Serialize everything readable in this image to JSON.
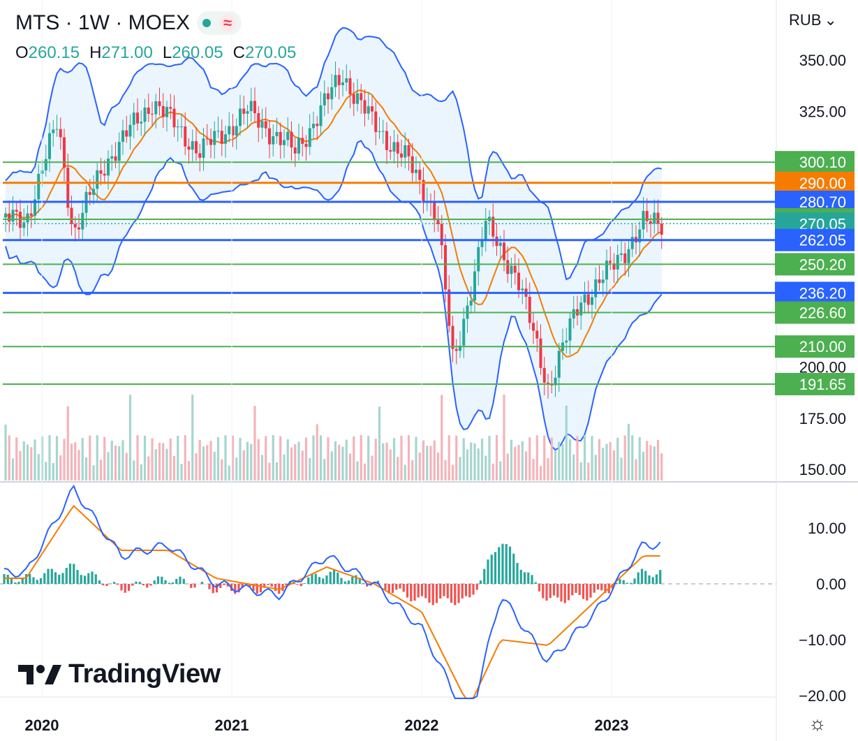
{
  "header": {
    "symbol": "MTS · 1W · MOEX",
    "indicator_wave": "≈",
    "ohlc": {
      "o_label": "O",
      "o_value": "260.15",
      "h_label": "H",
      "h_value": "271.00",
      "l_label": "L",
      "l_value": "260.05",
      "c_label": "C",
      "c_value": "270.05"
    },
    "currency": "RUB"
  },
  "brand": "TradingView",
  "colors": {
    "up": "#26a69a",
    "down": "#f23645",
    "blue": "#2962ff",
    "orange": "#f57c00",
    "green_level": "#4caf50",
    "band_fill": "#e3f2fd"
  },
  "chart_data": [
    {
      "type": "candlestick",
      "title": "MTS · 1W · MOEX",
      "y_axis_ticks": [
        "350.00",
        "325.00",
        "200.00",
        "175.00",
        "150.00"
      ],
      "x_axis_ticks": [
        "2020",
        "2021",
        "2022",
        "2023"
      ],
      "ylim": [
        150,
        355
      ],
      "horizontal_levels": [
        {
          "value": 300.1,
          "label": "300.10",
          "color": "green"
        },
        {
          "value": 290.0,
          "label": "290.00",
          "color": "orange"
        },
        {
          "value": 280.7,
          "label": "280.70",
          "color": "blue"
        },
        {
          "value": 272.2,
          "label": "272.20",
          "color": "green"
        },
        {
          "value": 270.05,
          "label": "270.05",
          "color": "green",
          "current_price": true
        },
        {
          "value": 262.05,
          "label": "262.05",
          "color": "blue"
        },
        {
          "value": 250.2,
          "label": "250.20",
          "color": "green"
        },
        {
          "value": 236.2,
          "label": "236.20",
          "color": "blue"
        },
        {
          "value": 226.6,
          "label": "226.60",
          "color": "green"
        },
        {
          "value": 210.0,
          "label": "210.00",
          "color": "green"
        },
        {
          "value": 191.65,
          "label": "191.65",
          "color": "green"
        }
      ],
      "series": [
        {
          "name": "close",
          "approx_points": [
            {
              "x": "2019-12",
              "y": 272
            },
            {
              "x": "2020-02",
              "y": 320
            },
            {
              "x": "2020-03",
              "y": 265
            },
            {
              "x": "2020-05",
              "y": 300
            },
            {
              "x": "2020-08",
              "y": 330
            },
            {
              "x": "2020-11",
              "y": 305
            },
            {
              "x": "2021-02",
              "y": 325
            },
            {
              "x": "2021-05",
              "y": 305
            },
            {
              "x": "2021-08",
              "y": 343
            },
            {
              "x": "2021-10",
              "y": 318
            },
            {
              "x": "2021-12",
              "y": 302
            },
            {
              "x": "2022-02",
              "y": 274
            },
            {
              "x": "2022-03",
              "y": 200
            },
            {
              "x": "2022-05",
              "y": 270
            },
            {
              "x": "2022-07",
              "y": 245
            },
            {
              "x": "2022-09",
              "y": 190
            },
            {
              "x": "2022-11",
              "y": 232
            },
            {
              "x": "2023-01",
              "y": 248
            },
            {
              "x": "2023-03",
              "y": 270.05
            }
          ]
        }
      ]
    },
    {
      "type": "line",
      "title": "",
      "y_axis_ticks": [
        "10.00",
        "0.00",
        "−10.00",
        "−20.00"
      ],
      "ylim": [
        -21,
        18
      ],
      "series": [
        {
          "name": "",
          "approx_points": [
            {
              "x": "2019-12",
              "y": 2
            },
            {
              "x": "2020-03",
              "y": 17
            },
            {
              "x": "2020-06",
              "y": 5
            },
            {
              "x": "2020-09",
              "y": 7
            },
            {
              "x": "2020-12",
              "y": 0
            },
            {
              "x": "2021-04",
              "y": -2
            },
            {
              "x": "2021-07",
              "y": 5
            },
            {
              "x": "2021-10",
              "y": 0
            },
            {
              "x": "2022-01",
              "y": -8
            },
            {
              "x": "2022-04",
              "y": -25
            },
            {
              "x": "2022-06",
              "y": -2
            },
            {
              "x": "2022-09",
              "y": -14
            },
            {
              "x": "2022-12",
              "y": -5
            },
            {
              "x": "2023-03",
              "y": 7
            }
          ]
        },
        {
          "name": "",
          "approx_points": [
            {
              "x": "2019-12",
              "y": 1
            },
            {
              "x": "2020-03",
              "y": 14
            },
            {
              "x": "2020-06",
              "y": 6
            },
            {
              "x": "2020-09",
              "y": 6
            },
            {
              "x": "2020-12",
              "y": 1
            },
            {
              "x": "2021-04",
              "y": -1
            },
            {
              "x": "2021-07",
              "y": 3
            },
            {
              "x": "2021-10",
              "y": 0
            },
            {
              "x": "2022-01",
              "y": -5
            },
            {
              "x": "2022-04",
              "y": -22
            },
            {
              "x": "2022-06",
              "y": -10
            },
            {
              "x": "2022-09",
              "y": -11
            },
            {
              "x": "2022-12",
              "y": -3
            },
            {
              "x": "2023-03",
              "y": 5
            }
          ]
        }
      ]
    }
  ]
}
